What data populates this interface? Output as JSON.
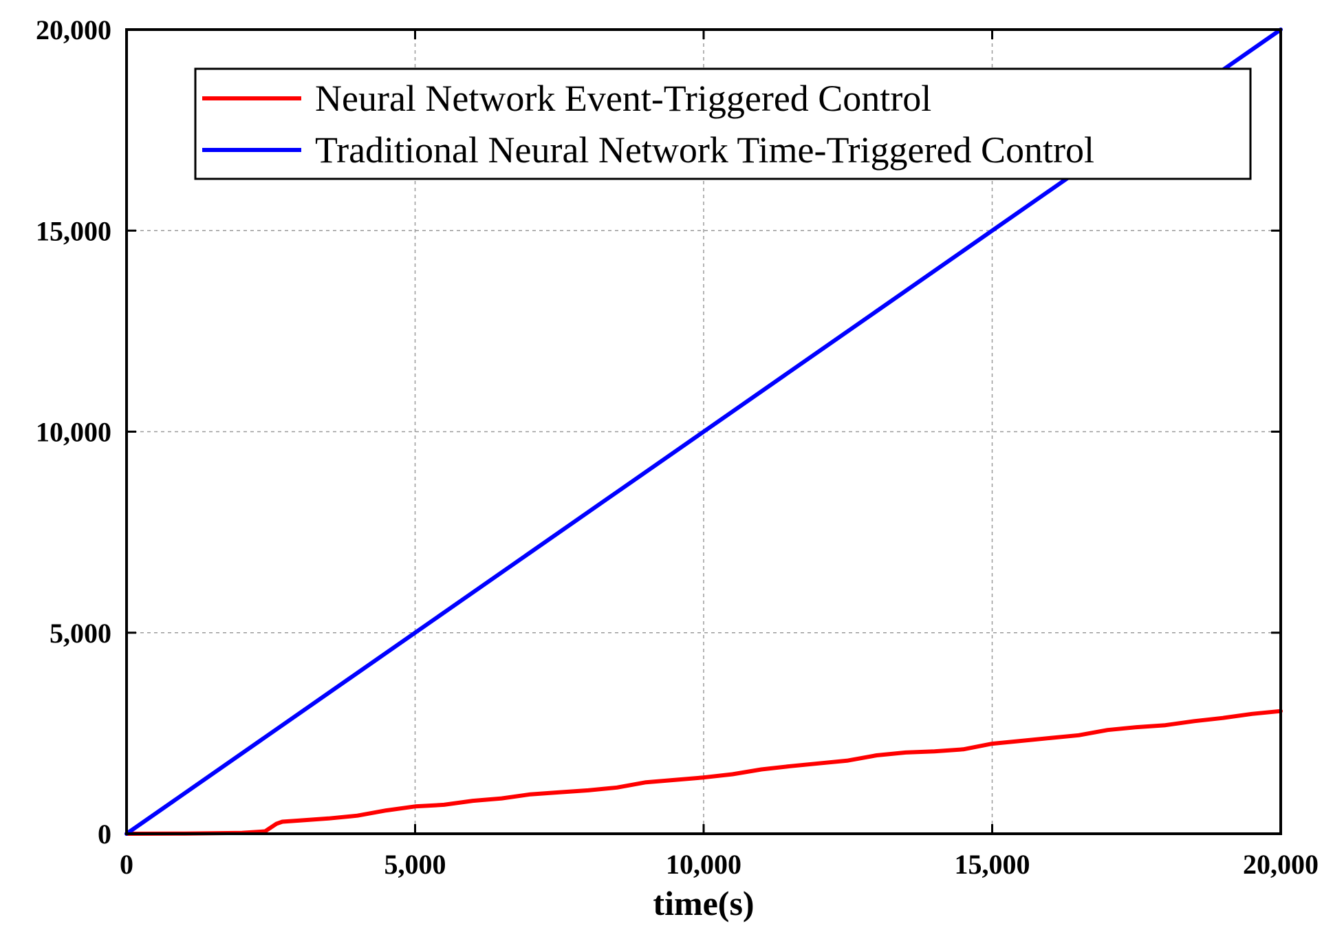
{
  "chart_data": {
    "type": "line",
    "title": "",
    "xlabel": "time(s)",
    "ylabel": "",
    "xlim": [
      0,
      20000
    ],
    "ylim": [
      0,
      20000
    ],
    "x_ticks": [
      0,
      5000,
      10000,
      15000,
      20000
    ],
    "y_ticks": [
      0,
      5000,
      10000,
      15000,
      20000
    ],
    "x_tick_labels": [
      "0",
      "5,000",
      "10,000",
      "15,000",
      "20,000"
    ],
    "y_tick_labels": [
      "0",
      "5,000",
      "10,000",
      "15,000",
      "20,000"
    ],
    "grid": true,
    "legend_position": "top-right",
    "series": [
      {
        "name": "Neural Network Event-Triggered Control",
        "color": "#ff0000",
        "x": [
          0,
          1000,
          2000,
          2400,
          2600,
          2700,
          3000,
          3500,
          4000,
          4500,
          5000,
          5500,
          6000,
          6500,
          7000,
          7500,
          8000,
          8500,
          9000,
          9500,
          10000,
          10500,
          11000,
          11500,
          12000,
          12500,
          13000,
          13500,
          14000,
          14500,
          15000,
          15500,
          16000,
          16500,
          17000,
          17500,
          18000,
          18500,
          19000,
          19500,
          20000
        ],
        "y": [
          0,
          5,
          20,
          60,
          250,
          300,
          330,
          380,
          450,
          580,
          680,
          720,
          820,
          880,
          980,
          1030,
          1080,
          1150,
          1280,
          1340,
          1400,
          1480,
          1600,
          1680,
          1750,
          1820,
          1950,
          2020,
          2050,
          2100,
          2240,
          2310,
          2380,
          2450,
          2580,
          2650,
          2700,
          2800,
          2880,
          2980,
          3050
        ]
      },
      {
        "name": "Traditional Neural Network Time-Triggered Control",
        "color": "#0000ff",
        "x": [
          0,
          20000
        ],
        "y": [
          0,
          20000
        ]
      }
    ]
  }
}
